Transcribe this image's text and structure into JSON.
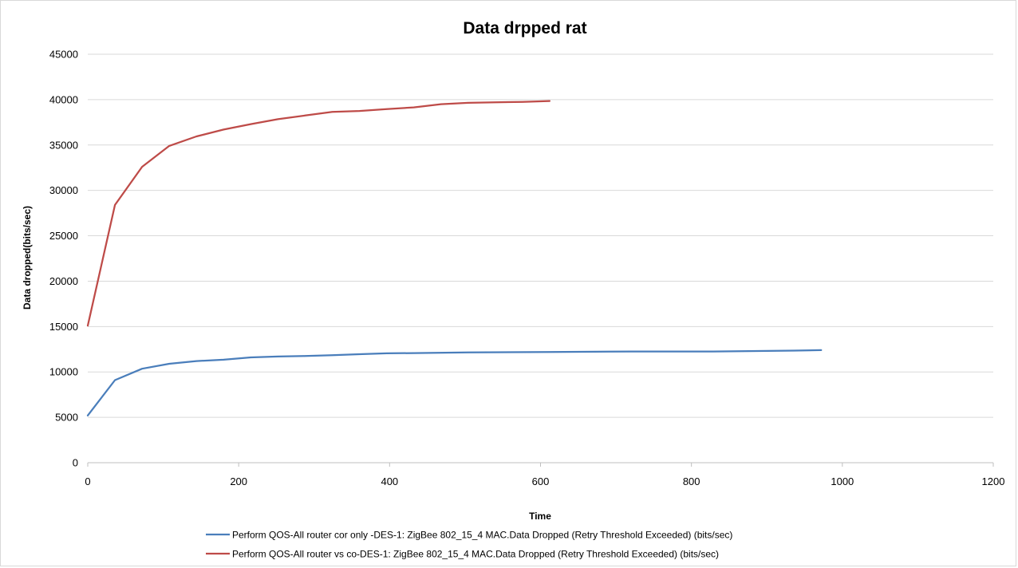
{
  "chart_data": {
    "type": "line",
    "title": "Data drpped rat",
    "xlabel": "Time",
    "ylabel": "Data dropped(bits/sec)",
    "xlim": [
      0,
      1200
    ],
    "ylim": [
      0,
      45000
    ],
    "xticks": [
      0,
      200,
      400,
      600,
      800,
      1000,
      1200
    ],
    "yticks": [
      0,
      5000,
      10000,
      15000,
      20000,
      25000,
      30000,
      35000,
      40000,
      45000
    ],
    "grid": "horizontal",
    "legend_position": "bottom",
    "series": [
      {
        "name": "Perform QOS-All router cor only -DES-1: ZigBee 802_15_4 MAC.Data Dropped (Retry Threshold Exceeded) (bits/sec)",
        "color": "#4a7ebb",
        "x": [
          0,
          36,
          72,
          108,
          144,
          180,
          216,
          252,
          288,
          324,
          360,
          396,
          432,
          504,
          612,
          720,
          828,
          936,
          972
        ],
        "y": [
          5200,
          9100,
          10350,
          10900,
          11200,
          11350,
          11600,
          11700,
          11750,
          11850,
          11950,
          12050,
          12080,
          12150,
          12200,
          12250,
          12250,
          12350,
          12400
        ]
      },
      {
        "name": "Perform QOS-All router vs co-DES-1: ZigBee 802_15_4 MAC.Data Dropped (Retry Threshold Exceeded) (bits/sec)",
        "color": "#be4b48",
        "x": [
          0,
          36,
          72,
          108,
          144,
          180,
          216,
          252,
          288,
          324,
          360,
          396,
          432,
          468,
          504,
          540,
          576,
          612
        ],
        "y": [
          15100,
          28400,
          32600,
          34900,
          35950,
          36700,
          37300,
          37850,
          38250,
          38650,
          38750,
          38950,
          39150,
          39500,
          39650,
          39700,
          39750,
          39850
        ]
      }
    ]
  }
}
